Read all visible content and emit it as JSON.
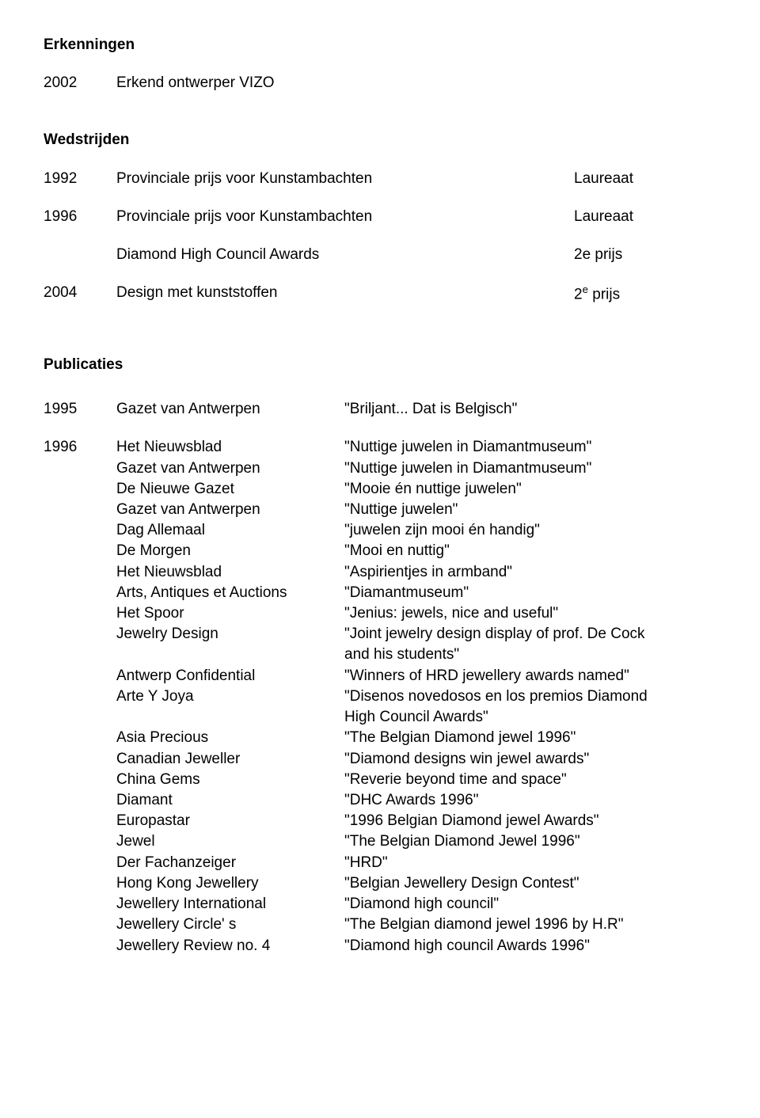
{
  "erkenningen": {
    "heading": "Erkenningen",
    "rows": [
      {
        "year": "2002",
        "text": "Erkend ontwerper  VIZO"
      }
    ]
  },
  "wedstrijden": {
    "heading": "Wedstrijden",
    "rows": [
      {
        "year": "1992",
        "text": "Provinciale prijs voor Kunstambachten",
        "result": "Laureaat"
      },
      {
        "year": "1996",
        "text": "Provinciale prijs voor Kunstambachten",
        "result": "Laureaat"
      },
      {
        "year": "",
        "text": "Diamond High Council Awards",
        "result": "2e prijs"
      },
      {
        "year": "2004",
        "text": "Design met kunststoffen",
        "result_pre": "2",
        "result_sup": "e",
        "result_post": " prijs"
      }
    ]
  },
  "publicaties": {
    "heading": "Publicaties",
    "r1995": {
      "year": "1995",
      "src": "Gazet van Antwerpen",
      "txt": "\"Briljant... Dat is Belgisch\""
    },
    "r1996": {
      "year": "1996",
      "items": [
        {
          "src": "Het Nieuwsblad",
          "txt": "\"Nuttige juwelen in Diamantmuseum\""
        },
        {
          "src": "Gazet van Antwerpen",
          "txt": "\"Nuttige juwelen in Diamantmuseum\""
        },
        {
          "src": "De Nieuwe Gazet",
          "txt": "\"Mooie én nuttige juwelen\""
        },
        {
          "src": "Gazet van Antwerpen",
          "txt": "\"Nuttige juwelen\""
        },
        {
          "src": "Dag Allemaal",
          "txt": "\"juwelen zijn mooi én handig\""
        },
        {
          "src": "De Morgen",
          "txt": "\"Mooi en nuttig\""
        },
        {
          "src": "Het Nieuwsblad",
          "txt": "\"Aspirientjes in armband\""
        },
        {
          "src": "Arts, Antiques et Auctions",
          "txt": "\"Diamantmuseum\""
        },
        {
          "src": "Het Spoor",
          "txt": "\"Jenius: jewels, nice and useful\""
        },
        {
          "src": "Jewelry Design",
          "txt": "\"Joint jewelry design display of prof. De Cock"
        },
        {
          "src": "",
          "txt": "and  his students\""
        },
        {
          "src": "Antwerp Confidential",
          "txt": "\"Winners of HRD jewellery awards named\""
        },
        {
          "src": "Arte Y Joya",
          "txt": "\"Disenos novedosos en los premios Diamond"
        },
        {
          "src": "",
          "txt": "High  Council Awards\""
        },
        {
          "src": "Asia Precious",
          "txt": "\"The Belgian Diamond jewel 1996\""
        },
        {
          "src": "Canadian Jeweller",
          "txt": "\"Diamond designs win jewel awards\""
        },
        {
          "src": "China Gems",
          "txt": "\"Reverie beyond time and space\""
        },
        {
          "src": "Diamant",
          "txt": "\"DHC Awards 1996\""
        },
        {
          "src": "Europastar",
          "txt": "\"1996 Belgian Diamond jewel Awards\""
        },
        {
          "src": "Jewel",
          "txt": "\"The Belgian Diamond Jewel 1996\""
        },
        {
          "src": "Der Fachanzeiger",
          "txt": "\"HRD\""
        },
        {
          "src": "Hong Kong Jewellery",
          "txt": "\"Belgian Jewellery Design Contest\""
        },
        {
          "src": "Jewellery International",
          "txt": "\"Diamond high council\""
        },
        {
          "src": "Jewellery Circle' s",
          "txt": "\"The Belgian diamond jewel 1996 by H.R\""
        },
        {
          "src": "Jewellery Review no. 4",
          "txt": "\"Diamond high council Awards 1996\""
        }
      ]
    }
  }
}
